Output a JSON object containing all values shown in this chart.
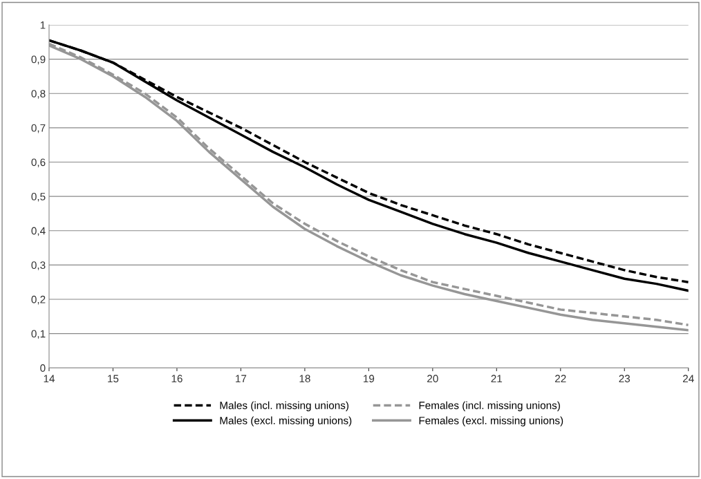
{
  "chart_data": {
    "type": "line",
    "x": [
      14,
      14.5,
      15,
      15.5,
      16,
      16.5,
      17,
      17.5,
      18,
      18.5,
      19,
      19.5,
      20,
      20.5,
      21,
      21.5,
      22,
      22.5,
      23,
      23.5,
      24
    ],
    "series": [
      {
        "name": "Males (incl. missing unions)",
        "color": "#000000",
        "line_style": "dashed",
        "values": [
          0.955,
          0.925,
          0.89,
          0.84,
          0.79,
          0.745,
          0.7,
          0.65,
          0.6,
          0.555,
          0.51,
          0.475,
          0.445,
          0.415,
          0.39,
          0.36,
          0.335,
          0.31,
          0.285,
          0.265,
          0.25
        ]
      },
      {
        "name": "Males (excl. missing unions)",
        "color": "#000000",
        "line_style": "solid",
        "values": [
          0.955,
          0.925,
          0.89,
          0.835,
          0.78,
          0.73,
          0.68,
          0.63,
          0.585,
          0.535,
          0.49,
          0.455,
          0.42,
          0.39,
          0.365,
          0.335,
          0.31,
          0.285,
          0.26,
          0.245,
          0.225
        ]
      },
      {
        "name": "Females (incl. missing unions)",
        "color": "#969696",
        "line_style": "dashed",
        "values": [
          0.945,
          0.905,
          0.855,
          0.8,
          0.73,
          0.64,
          0.56,
          0.48,
          0.42,
          0.37,
          0.325,
          0.285,
          0.25,
          0.23,
          0.21,
          0.19,
          0.17,
          0.16,
          0.15,
          0.14,
          0.125
        ]
      },
      {
        "name": "Females (excl. missing unions)",
        "color": "#969696",
        "line_style": "solid",
        "values": [
          0.94,
          0.9,
          0.85,
          0.79,
          0.72,
          0.63,
          0.55,
          0.47,
          0.405,
          0.355,
          0.31,
          0.27,
          0.24,
          0.215,
          0.195,
          0.175,
          0.155,
          0.14,
          0.13,
          0.12,
          0.11
        ]
      }
    ],
    "xlim": [
      14,
      24
    ],
    "xticks": [
      14,
      15,
      16,
      17,
      18,
      19,
      20,
      21,
      22,
      23,
      24
    ],
    "ylim": [
      0,
      1
    ],
    "yticks": [
      0,
      {
        "value": 0.1,
        "label": "0,1"
      },
      {
        "value": 0.2,
        "label": "0,2"
      },
      {
        "value": 0.3,
        "label": "0,3"
      },
      {
        "value": 0.4,
        "label": "0,4"
      },
      {
        "value": 0.5,
        "label": "0,5"
      },
      {
        "value": 0.6,
        "label": "0,6"
      },
      {
        "value": 0.7,
        "label": "0,7"
      },
      {
        "value": 0.8,
        "label": "0,8"
      },
      {
        "value": 0.9,
        "label": "0,9"
      },
      1
    ],
    "grid": "y",
    "legend": "bottom",
    "marker": "none"
  }
}
